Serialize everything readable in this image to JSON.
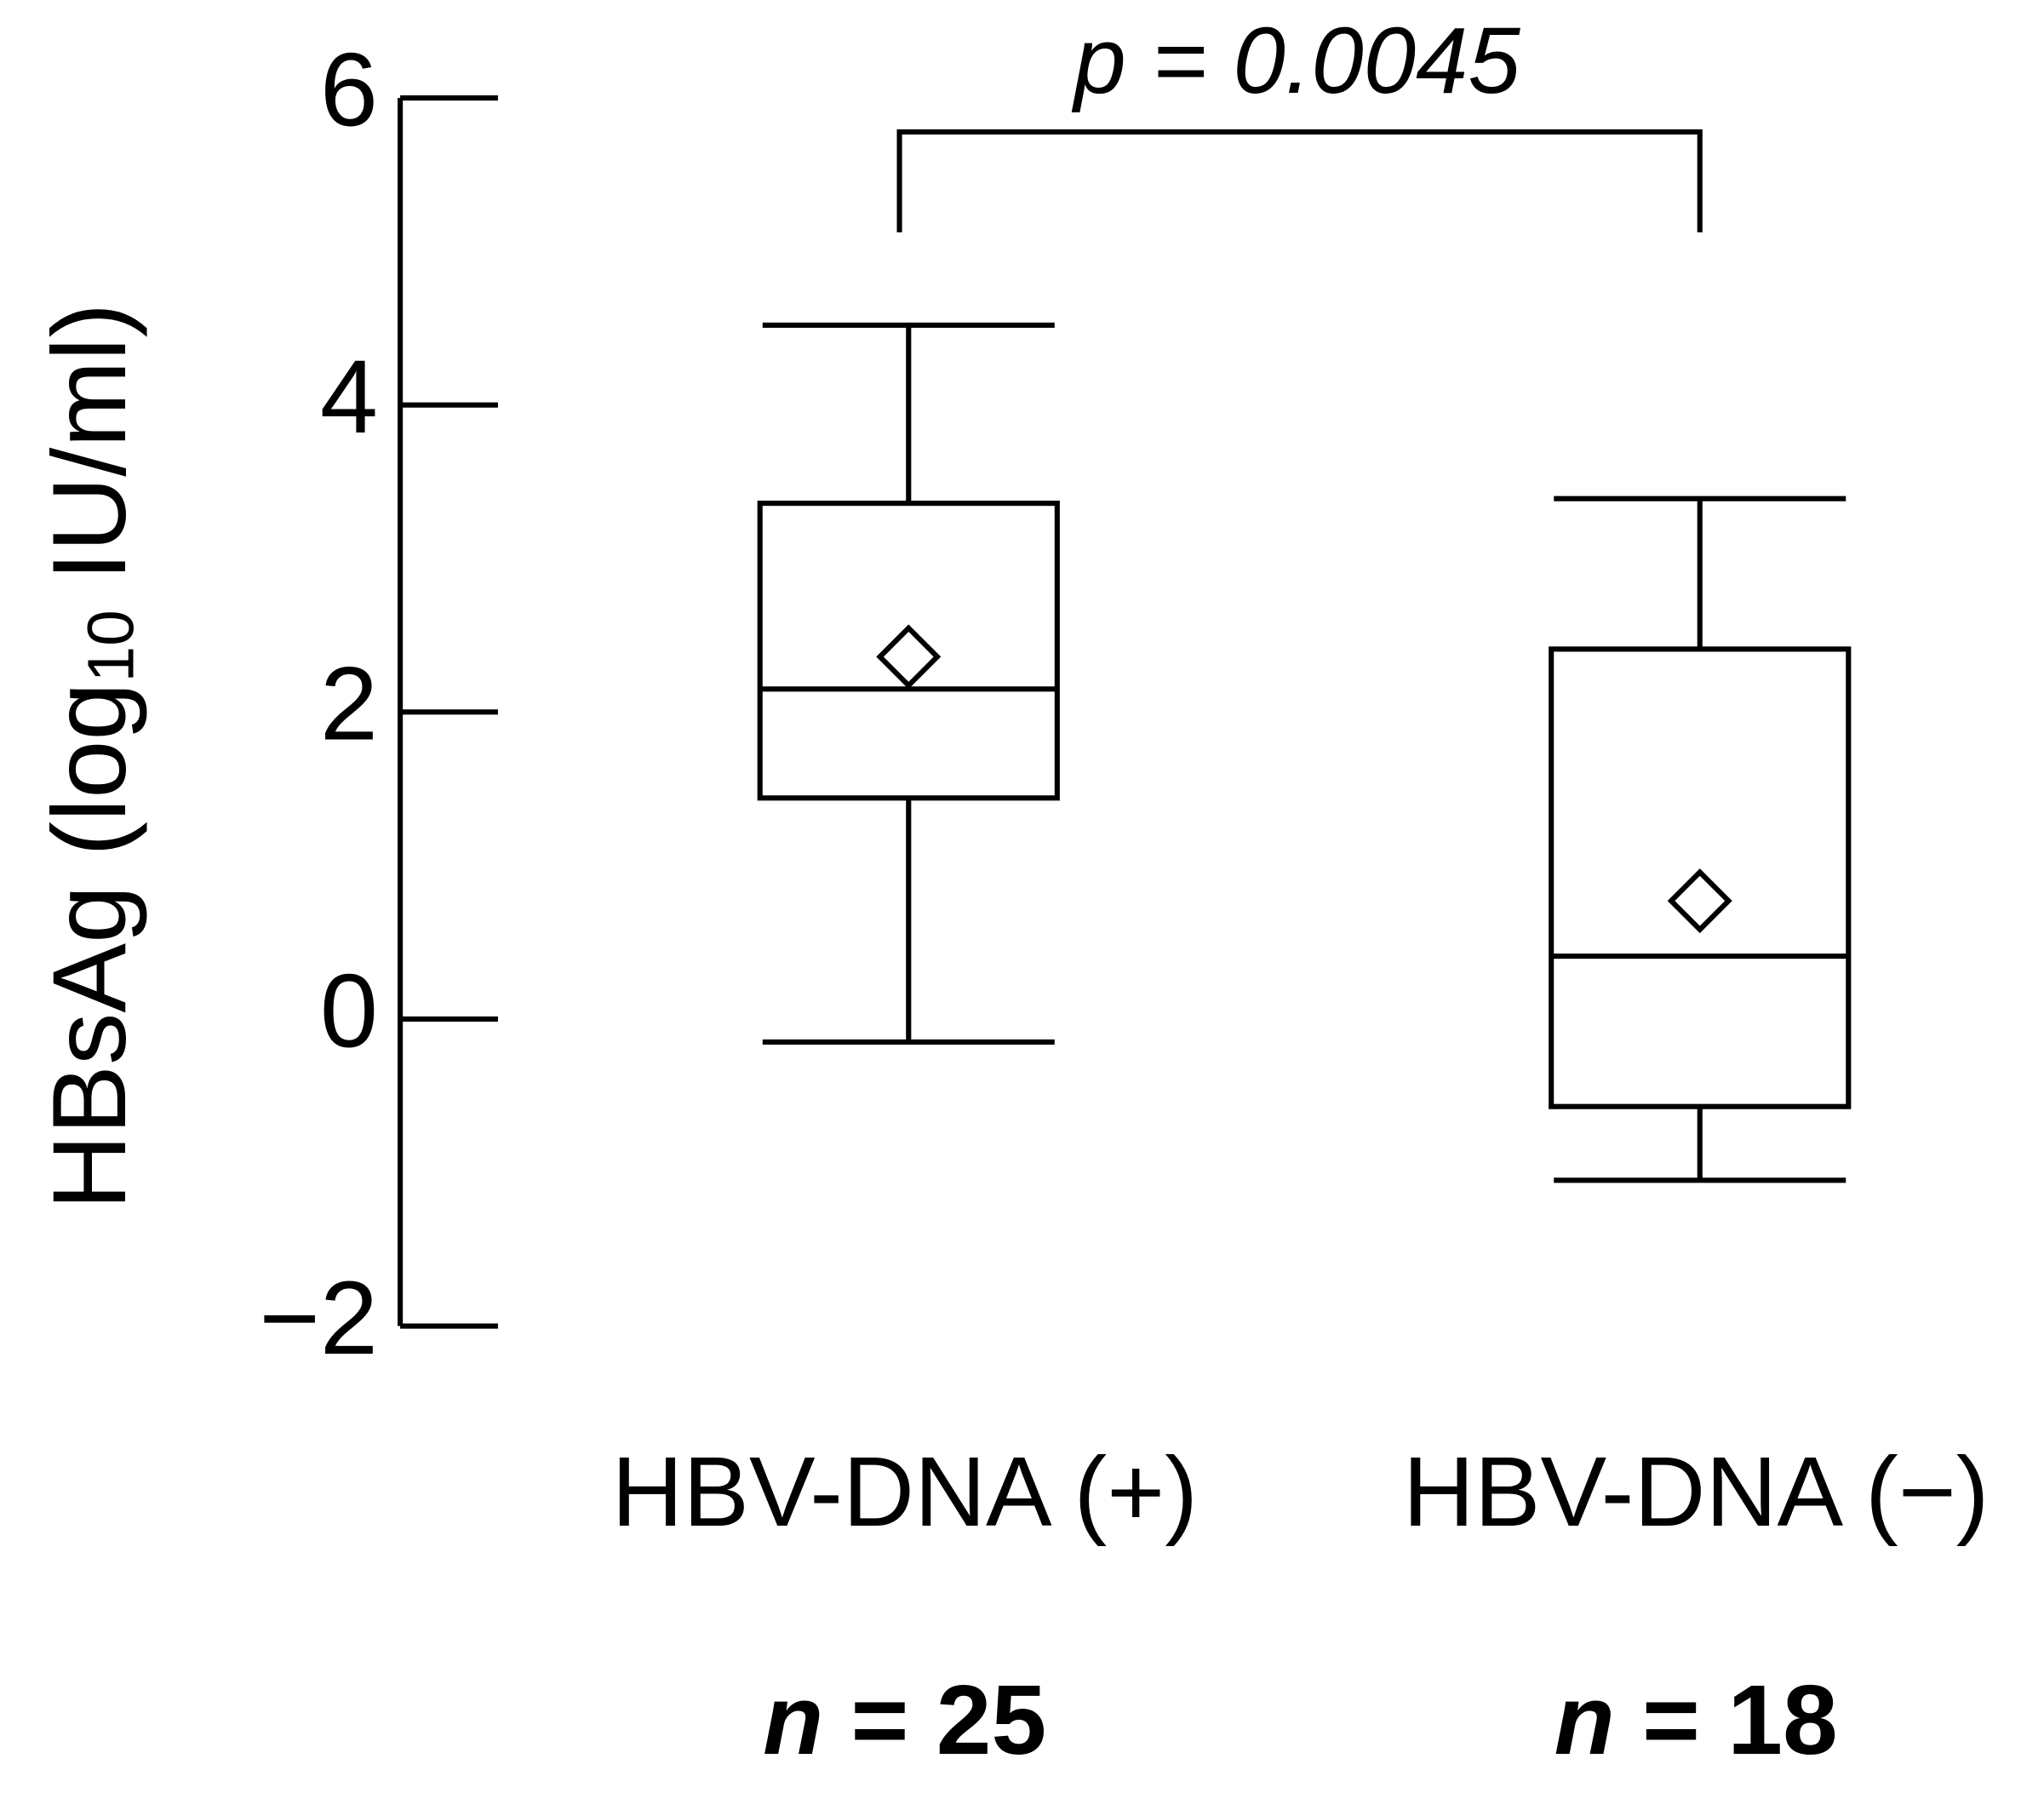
{
  "chart_data": {
    "type": "box",
    "ylabel": [
      "HBsAg (log",
      "10",
      " IU/ml)"
    ],
    "annotation": "p = 0.0045",
    "categories": [
      "HBV-DNA (+)",
      "HBV-DNA (−)"
    ],
    "sample_sizes": [
      [
        "n",
        " = 25"
      ],
      [
        "n",
        " = 18"
      ]
    ],
    "boxes": [
      {
        "whisker_low": -0.15,
        "q1": 1.44,
        "median": 2.15,
        "q3": 3.36,
        "whisker_high": 4.52,
        "mean": 2.36
      },
      {
        "whisker_low": -1.05,
        "q1": -0.57,
        "median": 0.41,
        "q3": 2.41,
        "whisker_high": 3.39,
        "mean": 0.77
      }
    ],
    "color": "#000000",
    "ylim": [
      -2,
      6
    ],
    "yticks": [
      {
        "value": -2,
        "label": "−2"
      },
      0,
      2,
      4,
      6
    ]
  }
}
